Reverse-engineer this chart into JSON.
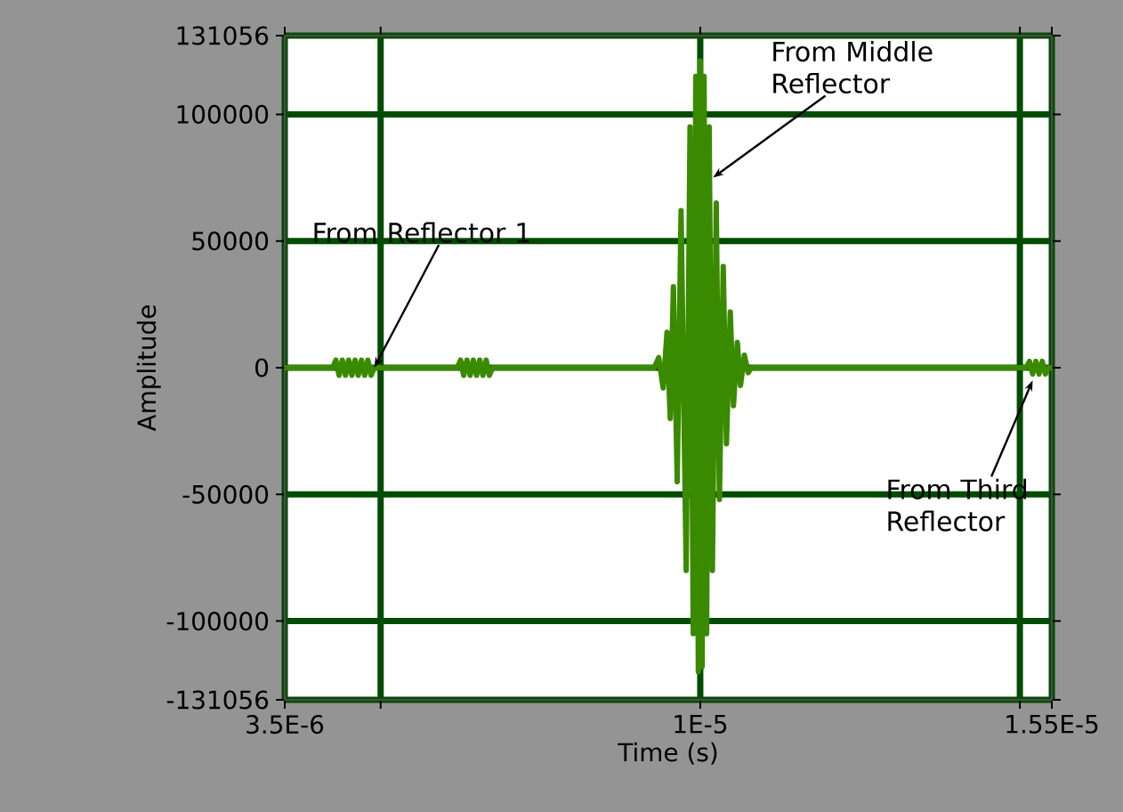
{
  "chart_data": {
    "type": "line",
    "xlabel": "Time (s)",
    "ylabel": "Amplitude",
    "xlim": [
      3.5e-06,
      1.55e-05
    ],
    "xticks": [
      {
        "value": 3.5e-06,
        "label": "3.5E-6"
      },
      {
        "value": 5e-06,
        "label": null
      },
      {
        "value": 1e-05,
        "label": "1E-5"
      },
      {
        "value": 1.5e-05,
        "label": null
      },
      {
        "value": 1.55e-05,
        "label": "1.55E-5"
      }
    ],
    "ylim": [
      -131056,
      131056
    ],
    "yticks": [
      -131056,
      -100000,
      -50000,
      0,
      50000,
      100000,
      131056
    ],
    "grid": true,
    "marker": "none",
    "line_style": "solid",
    "annotations": [
      {
        "text": "From Reflector 1",
        "x": 4.9e-06,
        "y": 0
      },
      {
        "text": "From Middle Reflector",
        "x": 1.02e-05,
        "y": 75000
      },
      {
        "text": "From Third Reflector",
        "x": 1.52e-05,
        "y": -5000
      }
    ],
    "series": [
      {
        "color": "#3a8a00",
        "x": [
          3.5e-06,
          4.25e-06,
          4.3e-06,
          4.35e-06,
          4.4e-06,
          4.45e-06,
          4.5e-06,
          4.55e-06,
          4.6e-06,
          4.65e-06,
          4.7e-06,
          4.75e-06,
          4.8e-06,
          4.85e-06,
          4.9e-06,
          6.2e-06,
          6.25e-06,
          6.3e-06,
          6.35e-06,
          6.4e-06,
          6.45e-06,
          6.5e-06,
          6.55e-06,
          6.6e-06,
          6.65e-06,
          6.7e-06,
          6.75e-06,
          9.28e-06,
          9.35e-06,
          9.42e-06,
          9.48e-06,
          9.53e-06,
          9.58e-06,
          9.64e-06,
          9.7e-06,
          9.78e-06,
          9.84e-06,
          9.89e-06,
          9.93e-06,
          9.97e-06,
          1e-05,
          1.003e-05,
          1.006e-05,
          1.01e-05,
          1.014e-05,
          1.019e-05,
          1.025e-05,
          1.03e-05,
          1.036e-05,
          1.041e-05,
          1.047e-05,
          1.052e-05,
          1.058e-05,
          1.063e-05,
          1.069e-05,
          1.075e-05,
          1.08e-05,
          1.51e-05,
          1.515e-05,
          1.52e-05,
          1.525e-05,
          1.53e-05,
          1.535e-05,
          1.54e-05,
          1.545e-05,
          1.55e-05
        ],
        "values": [
          0,
          0,
          3000,
          -3000,
          3000,
          -3000,
          3000,
          -3000,
          3000,
          -3000,
          3000,
          -3000,
          3000,
          -3000,
          0,
          0,
          3000,
          -3000,
          3000,
          -3000,
          3000,
          -3000,
          3000,
          -3000,
          3000,
          -3000,
          0,
          0,
          4000,
          -8000,
          14000,
          -20000,
          32000,
          -45000,
          62000,
          -80000,
          95000,
          -105000,
          115000,
          -120000,
          121000,
          -118000,
          115000,
          -105000,
          95000,
          -80000,
          65000,
          -52000,
          40000,
          -30000,
          22000,
          -15000,
          10000,
          -7000,
          5000,
          -2000,
          0,
          0,
          2500,
          -2500,
          2500,
          -2500,
          2500,
          -2500,
          0,
          0
        ]
      }
    ]
  }
}
